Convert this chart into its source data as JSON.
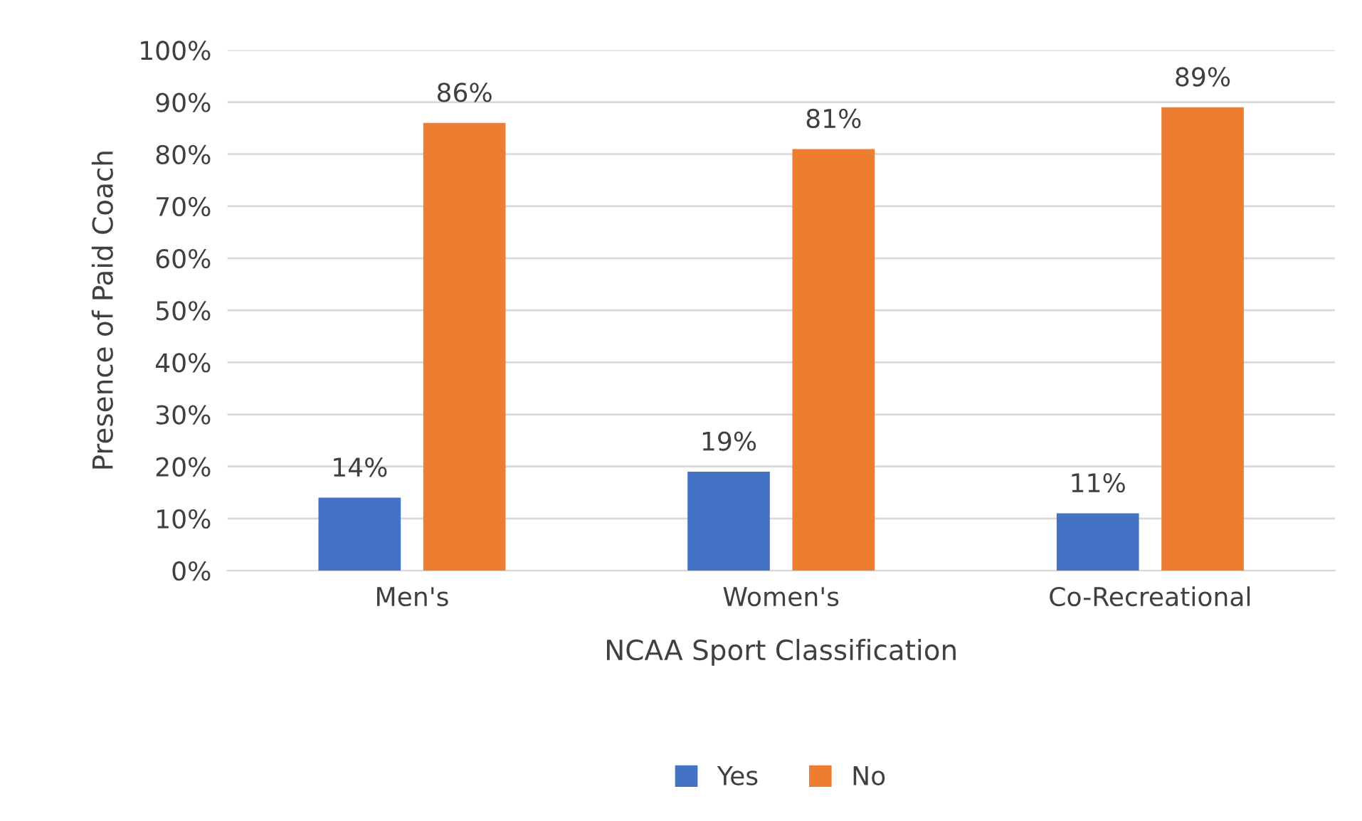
{
  "chart_data": {
    "type": "bar",
    "xlabel": "NCAA Sport Classification",
    "ylabel": "Presence of Paid Coach",
    "categories": [
      "Men's",
      "Women's",
      "Co-Recreational"
    ],
    "series": [
      {
        "name": "Yes",
        "color": "#4472c4",
        "values": [
          14,
          19,
          11
        ],
        "value_labels": [
          "14%",
          "19%",
          "11%"
        ]
      },
      {
        "name": "No",
        "color": "#ed7d31",
        "values": [
          86,
          81,
          89
        ],
        "value_labels": [
          "86%",
          "81%",
          "89%"
        ]
      }
    ],
    "ylim": [
      0,
      100
    ],
    "yticks": [
      {
        "value": 0,
        "label": "0%"
      },
      {
        "value": 10,
        "label": "10%"
      },
      {
        "value": 20,
        "label": "20%"
      },
      {
        "value": 30,
        "label": "30%"
      },
      {
        "value": 40,
        "label": "40%"
      },
      {
        "value": 50,
        "label": "50%"
      },
      {
        "value": 60,
        "label": "60%"
      },
      {
        "value": 70,
        "label": "70%"
      },
      {
        "value": 80,
        "label": "80%"
      },
      {
        "value": 90,
        "label": "90%"
      },
      {
        "value": 100,
        "label": "100%"
      }
    ],
    "grid": "y",
    "legend": "bottom"
  }
}
